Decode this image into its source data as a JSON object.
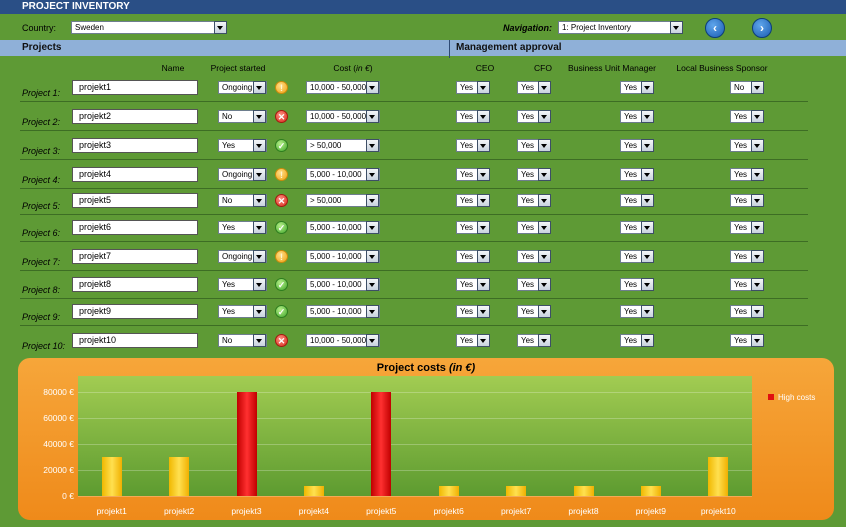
{
  "header": {
    "title": "PROJECT INVENTORY"
  },
  "country": {
    "label": "Country:",
    "value": "Sweden"
  },
  "navigation": {
    "label": "Navigation:",
    "value": "1: Project Inventory",
    "back_icon": "arrow-left-icon",
    "forward_icon": "arrow-right-icon"
  },
  "sections": {
    "projects": "Projects",
    "approval": "Management approval"
  },
  "columns": {
    "name": "Name",
    "started": "Project started",
    "cost_prefix": "Cost (",
    "cost_unit": "in €",
    "cost_suffix": ")",
    "ceo": "CEO",
    "cfo": "CFO",
    "bum": "Business Unit Manager",
    "lbs": "Local Business Sponsor"
  },
  "rows": [
    {
      "label": "Project 1:",
      "name": "projekt1",
      "started": "Ongoing",
      "status": "ongoing",
      "cost": "10,000 - 50,000",
      "ceo": "Yes",
      "cfo": "Yes",
      "bum": "Yes",
      "lbs": "No"
    },
    {
      "label": "Project 2:",
      "name": "projekt2",
      "started": "No",
      "status": "no",
      "cost": "10,000 - 50,000",
      "ceo": "Yes",
      "cfo": "Yes",
      "bum": "Yes",
      "lbs": "Yes"
    },
    {
      "label": "Project 3:",
      "name": "projekt3",
      "started": "Yes",
      "status": "yes",
      "cost": "> 50,000",
      "ceo": "Yes",
      "cfo": "Yes",
      "bum": "Yes",
      "lbs": "Yes"
    },
    {
      "label": "Project 4:",
      "name": "projekt4",
      "started": "Ongoing",
      "status": "ongoing",
      "cost": "5,000 - 10,000",
      "ceo": "Yes",
      "cfo": "Yes",
      "bum": "Yes",
      "lbs": "Yes"
    },
    {
      "label": "Project 5:",
      "name": "projekt5",
      "started": "No",
      "status": "no",
      "cost": "> 50,000",
      "ceo": "Yes",
      "cfo": "Yes",
      "bum": "Yes",
      "lbs": "Yes"
    },
    {
      "label": "Project 6:",
      "name": "projekt6",
      "started": "Yes",
      "status": "yes",
      "cost": "5,000 - 10,000",
      "ceo": "Yes",
      "cfo": "Yes",
      "bum": "Yes",
      "lbs": "Yes"
    },
    {
      "label": "Project 7:",
      "name": "projekt7",
      "started": "Ongoing",
      "status": "ongoing",
      "cost": "5,000 - 10,000",
      "ceo": "Yes",
      "cfo": "Yes",
      "bum": "Yes",
      "lbs": "Yes"
    },
    {
      "label": "Project 8:",
      "name": "projekt8",
      "started": "Yes",
      "status": "yes",
      "cost": "5,000 - 10,000",
      "ceo": "Yes",
      "cfo": "Yes",
      "bum": "Yes",
      "lbs": "Yes"
    },
    {
      "label": "Project 9:",
      "name": "projekt9",
      "started": "Yes",
      "status": "yes",
      "cost": "5,000 - 10,000",
      "ceo": "Yes",
      "cfo": "Yes",
      "bum": "Yes",
      "lbs": "Yes"
    },
    {
      "label": "Project 10:",
      "name": "projekt10",
      "started": "No",
      "status": "no",
      "cost": "10,000 - 50,000",
      "ceo": "Yes",
      "cfo": "Yes",
      "bum": "Yes",
      "lbs": "Yes"
    }
  ],
  "status_icons": {
    "ongoing": "!",
    "no": "✕",
    "yes": "✓"
  },
  "chart_data": {
    "type": "bar",
    "title": "Project costs",
    "title_unit": "(in €)",
    "categories": [
      "projekt1",
      "projekt2",
      "projekt3",
      "projekt4",
      "projekt5",
      "projekt6",
      "projekt7",
      "projekt8",
      "projekt9",
      "projekt10"
    ],
    "values": [
      30000,
      30000,
      80000,
      7500,
      80000,
      7500,
      7500,
      7500,
      7500,
      30000
    ],
    "high": [
      false,
      false,
      true,
      false,
      true,
      false,
      false,
      false,
      false,
      false
    ],
    "yticks": [
      "0 €",
      "20000 €",
      "40000 €",
      "60000 €",
      "80000 €"
    ],
    "ylim": [
      0,
      92000
    ],
    "legend": [
      {
        "name": "High costs",
        "color": "#e01010"
      }
    ],
    "colors": {
      "normal": "#f5c400",
      "high": "#e01010"
    }
  }
}
